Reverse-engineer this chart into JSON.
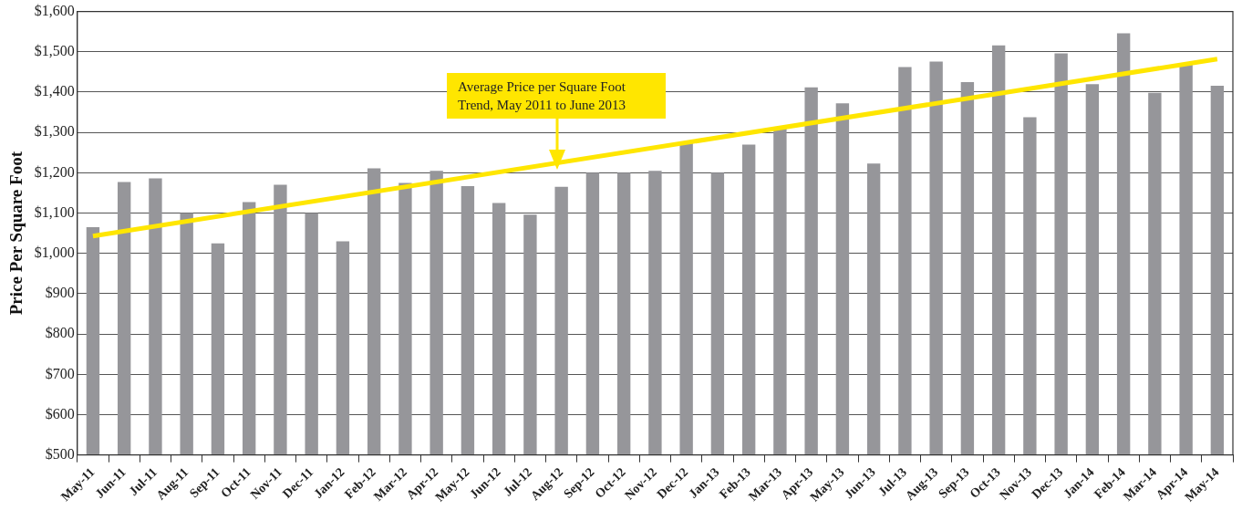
{
  "chart_data": {
    "type": "bar",
    "ylabel": "Price Per Square Foot",
    "categories": [
      "May-11",
      "Jun-11",
      "Jul-11",
      "Aug-11",
      "Sep-11",
      "Oct-11",
      "Nov-11",
      "Dec-11",
      "Jan-12",
      "Feb-12",
      "Mar-12",
      "Apr-12",
      "May-12",
      "Jun-12",
      "Jul-12",
      "Aug-12",
      "Sep-12",
      "Oct-12",
      "Nov-12",
      "Dec-12",
      "Jan-13",
      "Feb-13",
      "Mar-13",
      "Apr-13",
      "May-13",
      "Jun-13",
      "Jul-13",
      "Aug-13",
      "Sep-13",
      "Oct-13",
      "Nov-13",
      "Dec-13",
      "Jan-14",
      "Feb-14",
      "Mar-14",
      "Apr-14",
      "May-14"
    ],
    "series": [
      {
        "color": "#96969a",
        "values": [
          1065,
          1177,
          1186,
          1100,
          1025,
          1127,
          1170,
          1100,
          1030,
          1211,
          1175,
          1205,
          1167,
          1125,
          1096,
          1165,
          1200,
          1200,
          1205,
          1275,
          1200,
          1270,
          1312,
          1412,
          1372,
          1223,
          1462,
          1476,
          1425,
          1516,
          1338,
          1496,
          1420,
          1546,
          1398,
          1472,
          1416
        ]
      },
      {
        "type": "line",
        "color": "#ffe600",
        "x": [
          "May-11",
          "May-14"
        ],
        "values": [
          1043,
          1482
        ]
      }
    ],
    "ylim": [
      500,
      1600
    ],
    "yticks": [
      {
        "value": 500,
        "label": "$500"
      },
      {
        "value": 600,
        "label": "$600"
      },
      {
        "value": 700,
        "label": "$700"
      },
      {
        "value": 800,
        "label": "$800"
      },
      {
        "value": 900,
        "label": "$900"
      },
      {
        "value": 1000,
        "label": "$1,000"
      },
      {
        "value": 1100,
        "label": "$1,100"
      },
      {
        "value": 1200,
        "label": "$1,200"
      },
      {
        "value": 1300,
        "label": "$1,300"
      },
      {
        "value": 1400,
        "label": "$1,400"
      },
      {
        "value": 1500,
        "label": "$1,500"
      },
      {
        "value": 1600,
        "label": "$1,600"
      }
    ],
    "grid": "y",
    "legend": false,
    "marker": "none",
    "line_style": "solid",
    "annotations": [
      "Average Price per Square Foot Trend, May 2011 to June 2013"
    ]
  }
}
